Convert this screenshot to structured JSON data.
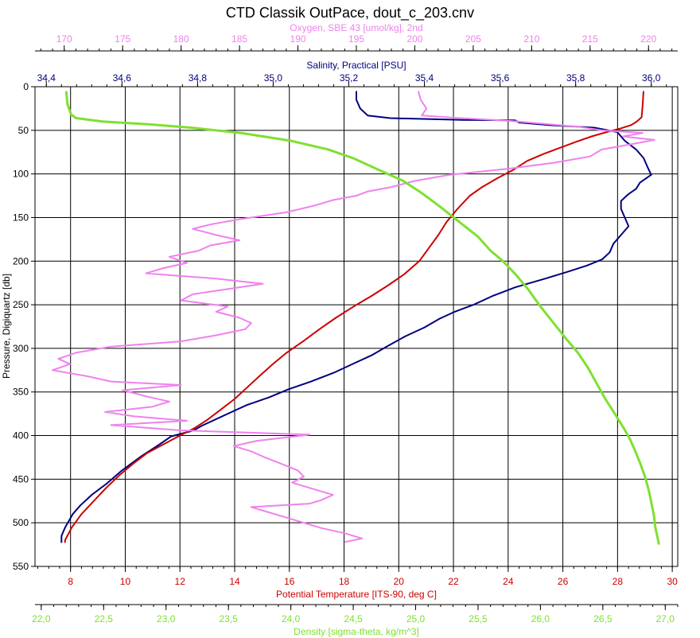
{
  "chart_data": {
    "type": "line",
    "title": "CTD Classik OutPace, dout_c_203.cnv",
    "grid": true,
    "legend": "none",
    "y_axis": {
      "label": "Pressure, Digiquartz [db]",
      "range": [
        0,
        550
      ],
      "inverted": true,
      "ticks": [
        "0",
        "50",
        "100",
        "150",
        "200",
        "250",
        "300",
        "350",
        "400",
        "450",
        "500",
        "550"
      ]
    },
    "x_axes": [
      {
        "id": "oxygen",
        "label": "Oxygen, SBE 43 [umol/kg], 2nd",
        "position": "top-outer",
        "color": "#ee82ee",
        "range": [
          167.5,
          222.5
        ],
        "ticks": [
          "170",
          "175",
          "180",
          "185",
          "190",
          "195",
          "200",
          "205",
          "210",
          "215",
          "220"
        ]
      },
      {
        "id": "salinity",
        "label": "Salinity, Practical [PSU]",
        "position": "top-inner",
        "color": "#000080",
        "range": [
          34.37,
          36.07
        ],
        "ticks": [
          "34,4",
          "34,6",
          "34,8",
          "35,0",
          "35,2",
          "35,4",
          "35,6",
          "35,8",
          "36,0"
        ]
      },
      {
        "id": "temperature",
        "label": "Potential Temperature [ITS-90, deg C]",
        "position": "bottom-inner",
        "color": "#cc0000",
        "range": [
          6.7,
          30.2
        ],
        "ticks": [
          "8",
          "10",
          "12",
          "14",
          "16",
          "18",
          "20",
          "22",
          "24",
          "26",
          "28",
          "30"
        ]
      },
      {
        "id": "density",
        "label": "Density [sigma-theta, kg/m^3]",
        "position": "bottom-outer",
        "color": "#7fe030",
        "range": [
          21.95,
          27.1
        ],
        "ticks": [
          "22,0",
          "22,5",
          "23,0",
          "23,5",
          "24,0",
          "24,5",
          "25,0",
          "25,5",
          "26,0",
          "26,5",
          "27,0"
        ]
      }
    ],
    "series": [
      {
        "axis": "salinity",
        "color": "#000080",
        "points": [
          [
            35.22,
            5
          ],
          [
            35.22,
            15
          ],
          [
            35.23,
            25
          ],
          [
            35.25,
            33
          ],
          [
            35.31,
            36
          ],
          [
            35.5,
            38
          ],
          [
            35.64,
            38.5
          ],
          [
            35.65,
            41
          ],
          [
            35.73,
            44
          ],
          [
            35.85,
            47
          ],
          [
            35.91,
            52
          ],
          [
            35.93,
            62
          ],
          [
            35.96,
            72
          ],
          [
            35.98,
            82
          ],
          [
            35.99,
            92
          ],
          [
            36.0,
            101
          ],
          [
            35.97,
            110
          ],
          [
            35.96,
            117
          ],
          [
            35.94,
            123
          ],
          [
            35.92,
            131
          ],
          [
            35.92,
            140
          ],
          [
            35.93,
            150
          ],
          [
            35.94,
            160
          ],
          [
            35.92,
            170
          ],
          [
            35.9,
            180
          ],
          [
            35.89,
            190
          ],
          [
            35.87,
            198
          ],
          [
            35.83,
            205
          ],
          [
            35.78,
            212
          ],
          [
            35.72,
            220
          ],
          [
            35.64,
            230
          ],
          [
            35.58,
            240
          ],
          [
            35.53,
            250
          ],
          [
            35.48,
            258
          ],
          [
            35.44,
            266
          ],
          [
            35.4,
            276
          ],
          [
            35.35,
            286
          ],
          [
            35.3,
            298
          ],
          [
            35.26,
            308
          ],
          [
            35.21,
            318
          ],
          [
            35.16,
            328
          ],
          [
            35.1,
            338
          ],
          [
            35.04,
            347
          ],
          [
            34.99,
            356
          ],
          [
            34.93,
            365
          ],
          [
            34.89,
            373
          ],
          [
            34.85,
            381
          ],
          [
            34.81,
            389
          ],
          [
            34.79,
            394
          ],
          [
            34.73,
            401
          ],
          [
            34.7,
            410
          ],
          [
            34.65,
            424
          ],
          [
            34.6,
            440
          ],
          [
            34.56,
            455
          ],
          [
            34.52,
            468
          ],
          [
            34.49,
            480
          ],
          [
            34.47,
            490
          ],
          [
            34.45,
            505
          ],
          [
            34.44,
            515
          ],
          [
            34.44,
            523
          ]
        ]
      },
      {
        "axis": "temperature",
        "color": "#cc0000",
        "points": [
          [
            28.95,
            5
          ],
          [
            28.92,
            20
          ],
          [
            28.88,
            35
          ],
          [
            28.7,
            40
          ],
          [
            28.5,
            44
          ],
          [
            28.1,
            48
          ],
          [
            27.6,
            52
          ],
          [
            27.05,
            57
          ],
          [
            26.5,
            63
          ],
          [
            25.9,
            70
          ],
          [
            25.3,
            77
          ],
          [
            24.7,
            85
          ],
          [
            24.2,
            95
          ],
          [
            23.6,
            105
          ],
          [
            23.05,
            115
          ],
          [
            22.6,
            125
          ],
          [
            22.15,
            140
          ],
          [
            21.75,
            155
          ],
          [
            21.45,
            170
          ],
          [
            21.1,
            185
          ],
          [
            20.75,
            200
          ],
          [
            20.2,
            215
          ],
          [
            19.6,
            228
          ],
          [
            19.0,
            240
          ],
          [
            18.35,
            252
          ],
          [
            17.7,
            265
          ],
          [
            17.1,
            278
          ],
          [
            16.5,
            292
          ],
          [
            15.9,
            305
          ],
          [
            15.4,
            318
          ],
          [
            14.9,
            332
          ],
          [
            14.45,
            345
          ],
          [
            14.0,
            358
          ],
          [
            13.5,
            370
          ],
          [
            13.0,
            382
          ],
          [
            12.5,
            392
          ],
          [
            12.0,
            400
          ],
          [
            11.4,
            410
          ],
          [
            10.8,
            420
          ],
          [
            10.3,
            432
          ],
          [
            9.8,
            445
          ],
          [
            9.3,
            460
          ],
          [
            8.85,
            475
          ],
          [
            8.4,
            490
          ],
          [
            8.05,
            505
          ],
          [
            7.8,
            520
          ],
          [
            7.8,
            523
          ]
        ]
      },
      {
        "axis": "oxygen",
        "color": "#ee82ee",
        "points": [
          [
            200.3,
            5
          ],
          [
            200.5,
            15
          ],
          [
            201.0,
            25
          ],
          [
            200.6,
            33
          ],
          [
            204.0,
            36
          ],
          [
            208.0,
            39
          ],
          [
            214.0,
            46
          ],
          [
            216.0,
            50
          ],
          [
            219.5,
            53
          ],
          [
            217.8,
            57
          ],
          [
            220.5,
            61
          ],
          [
            218.5,
            66
          ],
          [
            216.0,
            72
          ],
          [
            215.0,
            80
          ],
          [
            212.0,
            87
          ],
          [
            208.0,
            94
          ],
          [
            203.0,
            101
          ],
          [
            200.0,
            108
          ],
          [
            198.0,
            115
          ],
          [
            196.0,
            120
          ],
          [
            195.0,
            125
          ],
          [
            193.0,
            130
          ],
          [
            191.5,
            136
          ],
          [
            189.0,
            144
          ],
          [
            185.0,
            152
          ],
          [
            182.5,
            158
          ],
          [
            181.0,
            163
          ],
          [
            183.0,
            170
          ],
          [
            185.0,
            176
          ],
          [
            182.5,
            182
          ],
          [
            181.5,
            188
          ],
          [
            179.0,
            195
          ],
          [
            180.5,
            202
          ],
          [
            178.5,
            208
          ],
          [
            177.0,
            214
          ],
          [
            183.0,
            220
          ],
          [
            187.0,
            226
          ],
          [
            184.0,
            232
          ],
          [
            181.0,
            238
          ],
          [
            180.0,
            245
          ],
          [
            184.0,
            252
          ],
          [
            183.0,
            258
          ],
          [
            185.0,
            265
          ],
          [
            186.0,
            271
          ],
          [
            185.5,
            278
          ],
          [
            183.0,
            285
          ],
          [
            180.0,
            292
          ],
          [
            174.0,
            298
          ],
          [
            171.0,
            305
          ],
          [
            169.5,
            312
          ],
          [
            170.5,
            318
          ],
          [
            169.0,
            325
          ],
          [
            172.0,
            332
          ],
          [
            174.0,
            338
          ],
          [
            180.0,
            342
          ],
          [
            175.0,
            348
          ],
          [
            177.0,
            355
          ],
          [
            179.0,
            361
          ],
          [
            177.5,
            367
          ],
          [
            173.5,
            373
          ],
          [
            176.0,
            378
          ],
          [
            180.5,
            383
          ],
          [
            174.0,
            388
          ],
          [
            180.0,
            394
          ],
          [
            191.0,
            399
          ],
          [
            186.5,
            406
          ],
          [
            184.5,
            412
          ],
          [
            186.0,
            418
          ],
          [
            187.0,
            424
          ],
          [
            188.5,
            432
          ],
          [
            190.0,
            440
          ],
          [
            190.5,
            447
          ],
          [
            189.5,
            454
          ],
          [
            191.0,
            460
          ],
          [
            193.0,
            468
          ],
          [
            192.0,
            474
          ],
          [
            191.0,
            478
          ],
          [
            186.0,
            482
          ],
          [
            187.5,
            488
          ],
          [
            189.0,
            494
          ],
          [
            190.5,
            500
          ],
          [
            192.0,
            506
          ],
          [
            194.0,
            512
          ],
          [
            195.5,
            518
          ],
          [
            194.0,
            522
          ]
        ]
      },
      {
        "axis": "density",
        "color": "#7fe030",
        "points": [
          [
            22.2,
            5
          ],
          [
            22.21,
            20
          ],
          [
            22.24,
            32
          ],
          [
            22.28,
            36
          ],
          [
            22.5,
            40
          ],
          [
            22.85,
            43
          ],
          [
            23.2,
            47
          ],
          [
            23.6,
            53
          ],
          [
            24.0,
            62
          ],
          [
            24.3,
            72
          ],
          [
            24.5,
            82
          ],
          [
            24.7,
            95
          ],
          [
            24.9,
            108
          ],
          [
            25.05,
            122
          ],
          [
            25.2,
            138
          ],
          [
            25.35,
            155
          ],
          [
            25.5,
            172
          ],
          [
            25.6,
            188
          ],
          [
            25.7,
            200
          ],
          [
            25.8,
            215
          ],
          [
            25.9,
            232
          ],
          [
            26.0,
            252
          ],
          [
            26.1,
            270
          ],
          [
            26.2,
            288
          ],
          [
            26.3,
            305
          ],
          [
            26.38,
            322
          ],
          [
            26.45,
            340
          ],
          [
            26.52,
            358
          ],
          [
            26.6,
            376
          ],
          [
            26.67,
            392
          ],
          [
            26.72,
            405
          ],
          [
            26.76,
            418
          ],
          [
            26.8,
            432
          ],
          [
            26.84,
            448
          ],
          [
            26.87,
            464
          ],
          [
            26.89,
            478
          ],
          [
            26.91,
            492
          ],
          [
            26.92,
            505
          ],
          [
            26.94,
            518
          ],
          [
            26.95,
            525
          ]
        ]
      }
    ]
  }
}
